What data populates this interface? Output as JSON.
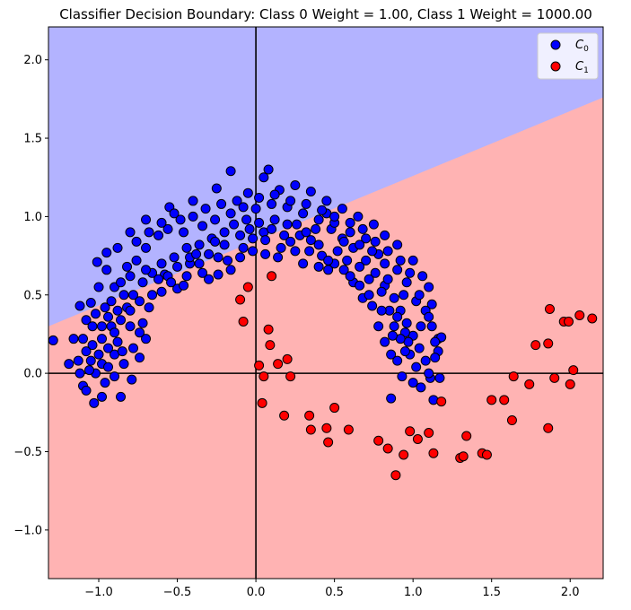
{
  "chart_data": {
    "type": "scatter",
    "title": "Classifier Decision Boundary: Class 0 Weight = 1.00, Class 1 Weight = 1000.00",
    "xlim": [
      -1.32,
      2.21
    ],
    "ylim": [
      -1.31,
      2.21
    ],
    "xticks": [
      -1.0,
      -0.5,
      0.0,
      0.5,
      1.0,
      1.5,
      2.0
    ],
    "yticks": [
      -1.0,
      -0.5,
      0.0,
      0.5,
      1.0,
      1.5,
      2.0
    ],
    "xtick_labels": [
      "−1.0",
      "−0.5",
      "0.0",
      "0.5",
      "1.0",
      "1.5",
      "2.0"
    ],
    "ytick_labels": [
      "−1.0",
      "−0.5",
      "0.0",
      "0.5",
      "1.0",
      "1.5",
      "2.0"
    ],
    "decision_boundary": {
      "x": [
        -1.32,
        2.21
      ],
      "y": [
        0.3,
        1.76
      ]
    },
    "region_colors": {
      "class0": "#b3b3ff",
      "class1": "#ffb3b3"
    },
    "legend": {
      "position": "top-right",
      "entries": [
        {
          "label_base": "C",
          "label_sub": "0",
          "color": "#0000ff"
        },
        {
          "label_base": "C",
          "label_sub": "1",
          "color": "#ff0000"
        }
      ]
    },
    "series": [
      {
        "name": "C0",
        "color": "#0000ff",
        "points": [
          [
            -1.29,
            0.21
          ],
          [
            -1.19,
            0.06
          ],
          [
            -1.16,
            0.22
          ],
          [
            -1.12,
            0.43
          ],
          [
            -1.1,
            -0.08
          ],
          [
            -1.08,
            -0.11
          ],
          [
            -1.05,
            0.08
          ],
          [
            -1.03,
            -0.19
          ],
          [
            -1.01,
            0.71
          ],
          [
            -0.98,
            -0.15
          ],
          [
            -0.95,
            0.77
          ],
          [
            -0.9,
            0.12
          ],
          [
            -0.85,
            0.14
          ],
          [
            -0.79,
            -0.04
          ],
          [
            -0.86,
            -0.15
          ],
          [
            -0.74,
            0.1
          ],
          [
            -0.72,
            0.32
          ],
          [
            -0.7,
            0.22
          ],
          [
            -0.68,
            0.42
          ],
          [
            -0.6,
            0.52
          ],
          [
            -0.58,
            0.63
          ],
          [
            -0.5,
            0.54
          ],
          [
            -0.44,
            0.62
          ],
          [
            -0.42,
            0.7
          ],
          [
            -0.34,
            0.64
          ],
          [
            -0.24,
            0.63
          ],
          [
            -0.18,
            0.72
          ],
          [
            -0.08,
            0.8
          ],
          [
            -0.02,
            0.86
          ],
          [
            0.05,
            0.9
          ],
          [
            0.12,
            0.98
          ],
          [
            0.2,
            0.95
          ],
          [
            0.28,
            0.88
          ],
          [
            0.35,
            0.85
          ],
          [
            0.42,
            0.75
          ],
          [
            0.5,
            0.7
          ],
          [
            0.56,
            0.66
          ],
          [
            0.62,
            0.58
          ],
          [
            0.68,
            0.48
          ],
          [
            0.74,
            0.43
          ],
          [
            0.78,
            0.3
          ],
          [
            0.82,
            0.2
          ],
          [
            0.86,
            0.12
          ],
          [
            0.9,
            0.08
          ],
          [
            0.93,
            -0.02
          ],
          [
            1.0,
            -0.06
          ],
          [
            1.05,
            -0.09
          ],
          [
            1.11,
            -0.03
          ],
          [
            1.13,
            -0.17
          ],
          [
            1.17,
            -0.03
          ],
          [
            1.16,
            0.22
          ],
          [
            1.18,
            0.23
          ],
          [
            1.16,
            0.14
          ],
          [
            1.12,
            0.44
          ],
          [
            1.1,
            0.55
          ],
          [
            1.06,
            0.62
          ],
          [
            1.0,
            0.72
          ],
          [
            0.9,
            0.82
          ],
          [
            0.82,
            0.88
          ],
          [
            0.75,
            0.95
          ],
          [
            0.65,
            1.0
          ],
          [
            0.55,
            1.05
          ],
          [
            0.45,
            1.1
          ],
          [
            0.35,
            1.16
          ],
          [
            0.25,
            1.2
          ],
          [
            0.15,
            1.17
          ],
          [
            0.05,
            1.25
          ],
          [
            0.08,
            1.3
          ],
          [
            -0.05,
            1.15
          ],
          [
            -0.16,
            1.29
          ],
          [
            -0.25,
            1.18
          ],
          [
            -0.4,
            1.1
          ],
          [
            -0.55,
            1.06
          ],
          [
            -0.7,
            0.98
          ],
          [
            -0.8,
            0.9
          ],
          [
            -0.88,
            0.8
          ],
          [
            -0.95,
            0.66
          ],
          [
            -1.0,
            0.55
          ],
          [
            -1.05,
            0.45
          ],
          [
            -1.08,
            0.34
          ],
          [
            -1.1,
            0.22
          ],
          [
            -1.13,
            0.08
          ],
          [
            -0.96,
            0.42
          ],
          [
            -0.92,
            0.3
          ],
          [
            -0.88,
            0.2
          ],
          [
            -0.9,
            0.55
          ],
          [
            -0.84,
            0.5
          ],
          [
            -0.8,
            0.62
          ],
          [
            -0.76,
            0.72
          ],
          [
            -0.7,
            0.8
          ],
          [
            -0.62,
            0.88
          ],
          [
            -0.56,
            0.92
          ],
          [
            -0.48,
            0.98
          ],
          [
            -0.4,
            1.0
          ],
          [
            -0.32,
            1.05
          ],
          [
            -0.22,
            1.08
          ],
          [
            -0.12,
            1.1
          ],
          [
            0.0,
            1.05
          ],
          [
            0.1,
            1.08
          ],
          [
            0.2,
            1.06
          ],
          [
            0.3,
            1.02
          ],
          [
            0.4,
            0.98
          ],
          [
            0.48,
            0.92
          ],
          [
            0.55,
            0.86
          ],
          [
            0.62,
            0.8
          ],
          [
            0.7,
            0.72
          ],
          [
            0.76,
            0.64
          ],
          [
            0.82,
            0.56
          ],
          [
            0.88,
            0.48
          ],
          [
            0.92,
            0.4
          ],
          [
            0.96,
            0.32
          ],
          [
            1.0,
            0.24
          ],
          [
            1.04,
            0.16
          ],
          [
            1.08,
            0.08
          ],
          [
            1.1,
            0.0
          ],
          [
            0.97,
            0.2
          ],
          [
            0.94,
            0.5
          ],
          [
            0.88,
            0.3
          ],
          [
            0.84,
            0.6
          ],
          [
            0.78,
            0.76
          ],
          [
            0.7,
            0.86
          ],
          [
            0.6,
            0.9
          ],
          [
            0.5,
            0.96
          ],
          [
            0.45,
            1.02
          ],
          [
            0.38,
            0.92
          ],
          [
            0.32,
            0.9
          ],
          [
            0.26,
            0.95
          ],
          [
            0.18,
            0.88
          ],
          [
            0.1,
            0.92
          ],
          [
            0.02,
            0.96
          ],
          [
            -0.06,
            0.98
          ],
          [
            -0.14,
            0.95
          ],
          [
            -0.2,
            0.9
          ],
          [
            -0.28,
            0.86
          ],
          [
            -0.36,
            0.82
          ],
          [
            -0.44,
            0.8
          ],
          [
            -0.52,
            0.74
          ],
          [
            -0.6,
            0.7
          ],
          [
            -0.66,
            0.64
          ],
          [
            -0.72,
            0.58
          ],
          [
            -0.78,
            0.5
          ],
          [
            -0.82,
            0.42
          ],
          [
            -0.86,
            0.34
          ],
          [
            -0.9,
            0.26
          ],
          [
            -0.94,
            0.16
          ],
          [
            -0.98,
            0.06
          ],
          [
            -1.02,
            0.0
          ],
          [
            -0.74,
            0.26
          ],
          [
            -0.8,
            0.3
          ],
          [
            -0.84,
            0.06
          ],
          [
            -0.78,
            0.16
          ],
          [
            -0.66,
            0.5
          ],
          [
            -0.56,
            0.62
          ],
          [
            -0.5,
            0.68
          ],
          [
            -0.42,
            0.74
          ],
          [
            -0.36,
            0.7
          ],
          [
            -0.3,
            0.76
          ],
          [
            -0.26,
            0.84
          ],
          [
            -0.2,
            0.82
          ],
          [
            -0.1,
            0.88
          ],
          [
            -0.04,
            0.92
          ],
          [
            0.06,
            0.85
          ],
          [
            0.16,
            0.8
          ],
          [
            0.22,
            0.84
          ],
          [
            0.34,
            0.78
          ],
          [
            0.4,
            0.82
          ],
          [
            0.46,
            0.72
          ],
          [
            0.52,
            0.78
          ],
          [
            0.58,
            0.72
          ],
          [
            0.66,
            0.68
          ],
          [
            0.72,
            0.6
          ],
          [
            0.8,
            0.52
          ],
          [
            0.85,
            0.4
          ],
          [
            0.9,
            0.36
          ],
          [
            0.95,
            0.26
          ],
          [
            0.98,
            0.12
          ],
          [
            1.02,
            0.04
          ],
          [
            1.05,
            0.3
          ],
          [
            1.08,
            0.4
          ],
          [
            1.12,
            0.3
          ],
          [
            1.14,
            0.1
          ],
          [
            1.02,
            0.46
          ],
          [
            0.96,
            0.58
          ],
          [
            0.9,
            0.66
          ],
          [
            0.82,
            0.7
          ],
          [
            0.74,
            0.78
          ],
          [
            0.66,
            0.82
          ],
          [
            0.56,
            0.84
          ],
          [
            -0.98,
            0.3
          ],
          [
            -1.04,
            0.18
          ],
          [
            -1.0,
            0.12
          ],
          [
            -0.94,
            0.04
          ],
          [
            -0.9,
            -0.02
          ],
          [
            -0.96,
            -0.06
          ],
          [
            -1.06,
            0.02
          ],
          [
            -1.02,
            0.38
          ],
          [
            -0.92,
            0.46
          ],
          [
            -0.86,
            0.58
          ],
          [
            -0.82,
            0.68
          ],
          [
            -0.76,
            0.84
          ],
          [
            -0.68,
            0.9
          ],
          [
            -0.6,
            0.96
          ],
          [
            -0.52,
            1.02
          ],
          [
            -0.46,
            0.9
          ],
          [
            -0.34,
            0.94
          ],
          [
            -0.26,
            0.98
          ],
          [
            -0.16,
            1.02
          ],
          [
            -0.08,
            1.06
          ],
          [
            0.02,
            1.12
          ],
          [
            0.12,
            1.14
          ],
          [
            0.22,
            1.1
          ],
          [
            0.32,
            1.08
          ],
          [
            0.42,
            1.04
          ],
          [
            0.5,
            1.0
          ],
          [
            0.6,
            0.96
          ],
          [
            0.68,
            0.92
          ],
          [
            0.76,
            0.84
          ],
          [
            0.84,
            0.78
          ],
          [
            0.92,
            0.72
          ],
          [
            0.98,
            0.64
          ],
          [
            1.04,
            0.5
          ],
          [
            1.1,
            0.36
          ],
          [
            1.14,
            0.2
          ],
          [
            0.86,
            -0.16
          ],
          [
            0.95,
            0.14
          ],
          [
            0.92,
            0.22
          ],
          [
            0.87,
            0.24
          ],
          [
            0.8,
            0.4
          ],
          [
            0.72,
            0.5
          ],
          [
            0.66,
            0.56
          ],
          [
            0.6,
            0.62
          ],
          [
            0.46,
            0.66
          ],
          [
            0.4,
            0.68
          ],
          [
            0.3,
            0.7
          ],
          [
            0.25,
            0.78
          ],
          [
            0.14,
            0.74
          ],
          [
            0.06,
            0.76
          ],
          [
            -0.02,
            0.78
          ],
          [
            -0.1,
            0.74
          ],
          [
            -0.16,
            0.66
          ],
          [
            -0.24,
            0.74
          ],
          [
            -0.3,
            0.6
          ],
          [
            -0.38,
            0.76
          ],
          [
            -0.46,
            0.56
          ],
          [
            -0.54,
            0.58
          ],
          [
            -0.62,
            0.6
          ],
          [
            -0.7,
            0.66
          ],
          [
            -0.74,
            0.46
          ],
          [
            -0.8,
            0.4
          ],
          [
            -0.88,
            0.4
          ],
          [
            -0.94,
            0.36
          ],
          [
            -0.98,
            0.22
          ],
          [
            -1.04,
            0.3
          ],
          [
            -1.08,
            0.14
          ],
          [
            -1.12,
            0.0
          ]
        ]
      },
      {
        "name": "C1",
        "color": "#ff0000",
        "points": [
          [
            -0.05,
            0.55
          ],
          [
            -0.1,
            0.47
          ],
          [
            -0.08,
            0.33
          ],
          [
            0.1,
            0.62
          ],
          [
            0.08,
            0.28
          ],
          [
            0.09,
            0.18
          ],
          [
            0.02,
            0.05
          ],
          [
            0.05,
            -0.02
          ],
          [
            0.04,
            -0.19
          ],
          [
            0.14,
            0.06
          ],
          [
            0.2,
            0.09
          ],
          [
            0.22,
            -0.02
          ],
          [
            0.18,
            -0.27
          ],
          [
            0.34,
            -0.27
          ],
          [
            0.35,
            -0.36
          ],
          [
            0.45,
            -0.35
          ],
          [
            0.46,
            -0.44
          ],
          [
            0.5,
            -0.22
          ],
          [
            0.59,
            -0.36
          ],
          [
            0.78,
            -0.43
          ],
          [
            0.84,
            -0.48
          ],
          [
            0.89,
            -0.65
          ],
          [
            0.94,
            -0.52
          ],
          [
            0.98,
            -0.37
          ],
          [
            1.03,
            -0.42
          ],
          [
            1.1,
            -0.38
          ],
          [
            1.13,
            -0.51
          ],
          [
            1.18,
            -0.18
          ],
          [
            1.3,
            -0.54
          ],
          [
            1.32,
            -0.53
          ],
          [
            1.34,
            -0.4
          ],
          [
            1.44,
            -0.51
          ],
          [
            1.47,
            -0.52
          ],
          [
            1.5,
            -0.17
          ],
          [
            1.58,
            -0.17
          ],
          [
            1.63,
            -0.3
          ],
          [
            1.64,
            -0.02
          ],
          [
            1.74,
            -0.07
          ],
          [
            1.78,
            0.18
          ],
          [
            1.86,
            0.19
          ],
          [
            1.86,
            -0.35
          ],
          [
            1.87,
            0.41
          ],
          [
            1.9,
            -0.03
          ],
          [
            1.96,
            0.33
          ],
          [
            1.99,
            0.33
          ],
          [
            2.0,
            -0.07
          ],
          [
            2.02,
            0.02
          ],
          [
            2.06,
            0.37
          ],
          [
            2.14,
            0.35
          ]
        ]
      }
    ]
  }
}
